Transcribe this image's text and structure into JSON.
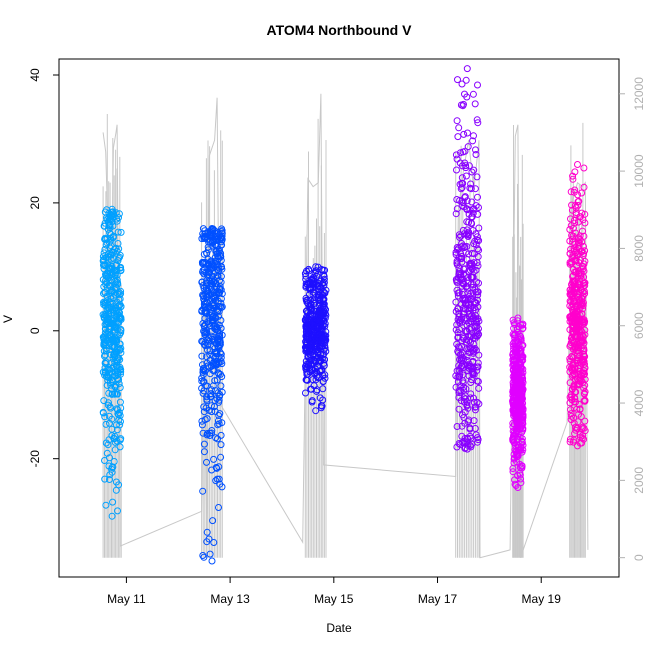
{
  "chart_data": {
    "type": "scatter",
    "title": "ATOM4 Northbound V",
    "xlabel": "Date",
    "ylabel": "V",
    "x_ticks": [
      "May 11",
      "May 13",
      "May 15",
      "May 17",
      "May 19"
    ],
    "x_range_days": [
      9.7,
      20.5
    ],
    "x_tick_days": [
      11,
      13,
      15,
      17,
      19
    ],
    "ylim": [
      -38.5,
      42.5
    ],
    "y_ticks": [
      -20,
      0,
      20,
      40
    ],
    "y_right_ticks": [
      0,
      2000,
      4000,
      6000,
      8000,
      10000,
      12000
    ],
    "y_right_lim": [
      -500,
      12900
    ],
    "y_right_color": "#b0b0b0",
    "series": [
      {
        "color": "#00a0ff",
        "start_day": 10.55,
        "end_day": 10.9,
        "v_min": -29,
        "v_max": 19,
        "v_center": 2
      },
      {
        "color": "#0050ff",
        "start_day": 12.45,
        "end_day": 12.85,
        "v_min": -36,
        "v_max": 16,
        "v_center": 2
      },
      {
        "color": "#1e10ff",
        "start_day": 14.45,
        "end_day": 14.85,
        "v_min": -12.5,
        "v_max": 10,
        "v_center": 0
      },
      {
        "color": "#8800ff",
        "start_day": 17.35,
        "end_day": 17.8,
        "v_min": -18.5,
        "v_max": 41,
        "v_center": 3
      },
      {
        "color": "#e000ff",
        "start_day": 18.45,
        "end_day": 18.65,
        "v_min": -24.5,
        "v_max": 2,
        "v_center": -10
      },
      {
        "color": "#ff00cc",
        "start_day": 19.55,
        "end_day": 19.85,
        "v_min": -18,
        "v_max": 26,
        "v_center": 1
      }
    ],
    "right_axis_line": {
      "color": "#c8c8c8",
      "note_series": "right-axis counts",
      "points": [
        [
          10.55,
          11000
        ],
        [
          10.6,
          10500
        ],
        [
          10.7,
          6000
        ],
        [
          10.75,
          10600
        ],
        [
          10.8,
          11000
        ],
        [
          10.82,
          11200
        ],
        [
          10.88,
          300
        ],
        [
          12.45,
          1200
        ],
        [
          12.5,
          6400
        ],
        [
          12.55,
          600
        ],
        [
          12.6,
          10400
        ],
        [
          12.7,
          10800
        ],
        [
          12.75,
          11900
        ],
        [
          12.8,
          4000
        ],
        [
          14.4,
          400
        ],
        [
          14.5,
          9800
        ],
        [
          14.6,
          9600
        ],
        [
          14.7,
          9700
        ],
        [
          14.75,
          12000
        ],
        [
          14.8,
          2400
        ],
        [
          17.35,
          2100
        ],
        [
          17.4,
          9000
        ],
        [
          17.5,
          10000
        ],
        [
          17.6,
          10800
        ],
        [
          17.7,
          9500
        ],
        [
          17.8,
          10800
        ],
        [
          17.82,
          0
        ],
        [
          18.4,
          200
        ],
        [
          18.5,
          10900
        ],
        [
          18.55,
          11200
        ],
        [
          18.6,
          0
        ],
        [
          19.5,
          3500
        ],
        [
          19.6,
          9200
        ],
        [
          19.7,
          9700
        ],
        [
          19.8,
          9600
        ],
        [
          19.85,
          9700
        ],
        [
          19.9,
          200
        ]
      ]
    }
  }
}
